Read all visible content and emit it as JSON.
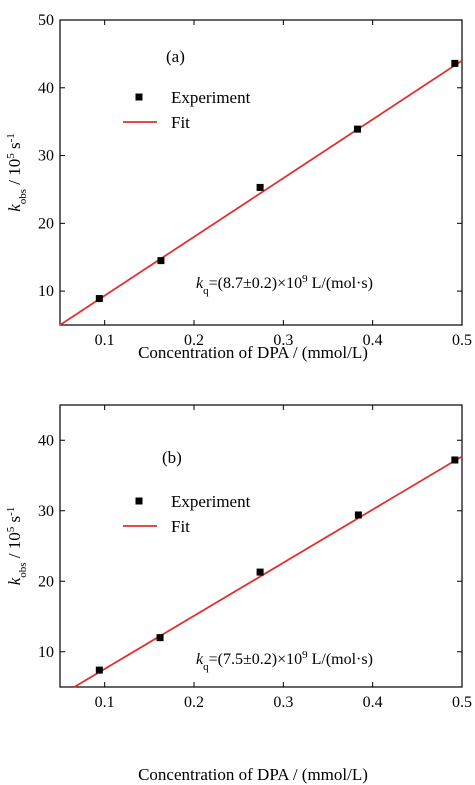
{
  "chart_data": [
    {
      "type": "scatter",
      "panel_label": "(a)",
      "xlabel": "Concentration of DPA / (mmol/L)",
      "ylabel": {
        "main": "k",
        "sub": "obs",
        "rest": " / 10",
        "sup": "5",
        "unit": " s",
        "unit_sup": "-1"
      },
      "xlim": [
        0.05,
        0.5
      ],
      "ylim": [
        5,
        50
      ],
      "xticks": [
        "0.1",
        "0.2",
        "0.3",
        "0.4",
        "0.5"
      ],
      "xtick_values": [
        0.1,
        0.2,
        0.3,
        0.4,
        0.5
      ],
      "yticks": [
        "10",
        "20",
        "30",
        "40",
        "50"
      ],
      "ytick_values": [
        10,
        20,
        30,
        40,
        50
      ],
      "grid": false,
      "legend_placement": "top-left",
      "series": [
        {
          "name": "Experiment",
          "kind": "points",
          "color": "#000000",
          "x": [
            0.094,
            0.163,
            0.274,
            0.383,
            0.492
          ],
          "y": [
            8.9,
            14.5,
            25.3,
            33.9,
            43.6
          ]
        },
        {
          "name": "Fit",
          "kind": "line",
          "color": "#e03030",
          "x": [
            0.05,
            0.5
          ],
          "y": [
            5.0,
            44.0
          ]
        }
      ],
      "annotation": {
        "main": "k",
        "sub": "q",
        "pre": "=(8.7±0.2)×10",
        "sup": "9",
        "post": " L/(mol·s)"
      }
    },
    {
      "type": "scatter",
      "panel_label": "(b)",
      "xlabel": "Concentration of DPA / (mmol/L)",
      "ylabel": {
        "main": "k",
        "sub": "obs",
        "rest": " / 10",
        "sup": "5",
        "unit": " s",
        "unit_sup": "-1"
      },
      "xlim": [
        0.05,
        0.5
      ],
      "ylim": [
        5,
        45
      ],
      "xticks": [
        "0.1",
        "0.2",
        "0.3",
        "0.4",
        "0.5"
      ],
      "xtick_values": [
        0.1,
        0.2,
        0.3,
        0.4,
        0.5
      ],
      "yticks": [
        "10",
        "20",
        "30",
        "40"
      ],
      "ytick_values": [
        10,
        20,
        30,
        40
      ],
      "grid": false,
      "legend_placement": "top-left",
      "series": [
        {
          "name": "Experiment",
          "kind": "points",
          "color": "#000000",
          "x": [
            0.094,
            0.162,
            0.274,
            0.384,
            0.492
          ],
          "y": [
            7.4,
            12.0,
            21.3,
            29.4,
            37.2
          ]
        },
        {
          "name": "Fit",
          "kind": "line",
          "color": "#e03030",
          "x": [
            0.066,
            0.5
          ],
          "y": [
            5.0,
            37.7
          ]
        }
      ],
      "annotation": {
        "main": "k",
        "sub": "q",
        "pre": "=(7.5±0.2)×10",
        "sup": "9",
        "post": " L/(mol·s)"
      }
    }
  ]
}
